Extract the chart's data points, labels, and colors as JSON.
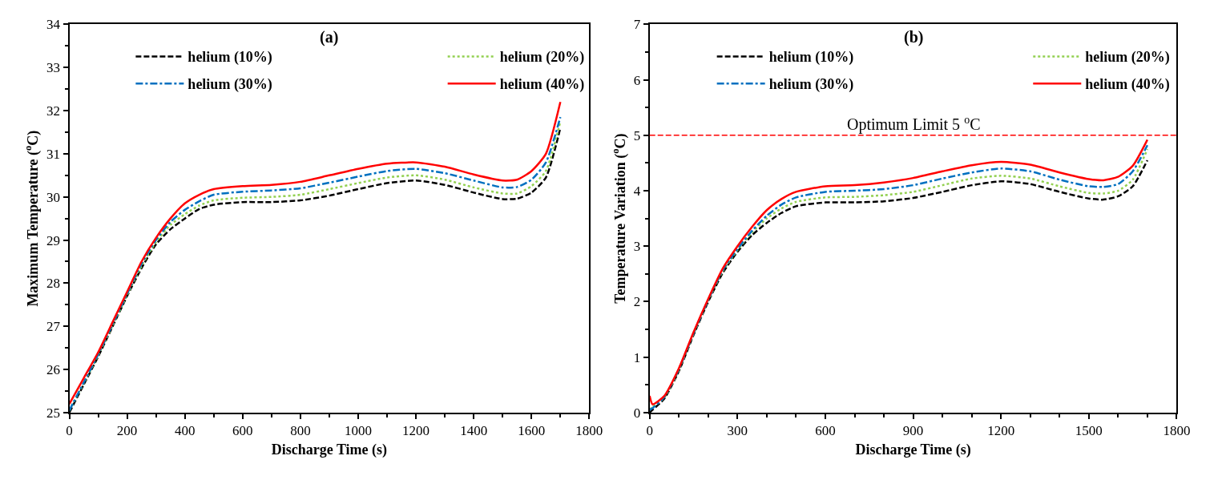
{
  "chart_data": [
    {
      "type": "line",
      "title": "(a)",
      "xlabel": "Discharge Time (s)",
      "ylabel": "Maximum Temperature ($^{o}$C)",
      "x": [
        0,
        50,
        100,
        150,
        200,
        250,
        300,
        350,
        400,
        450,
        500,
        600,
        700,
        800,
        900,
        1000,
        1100,
        1200,
        1300,
        1400,
        1500,
        1550,
        1600,
        1650,
        1700
      ],
      "xlim": [
        0,
        1800
      ],
      "xticks": [
        0,
        200,
        400,
        600,
        800,
        1000,
        1200,
        1400,
        1600,
        1800
      ],
      "ylim": [
        25,
        34
      ],
      "yticks": [
        25,
        26,
        27,
        28,
        29,
        30,
        31,
        32,
        33,
        34
      ],
      "legend": "top",
      "marker": "none",
      "series": [
        {
          "name": "helium (10%)",
          "color": "#000000",
          "line_style": "dashed",
          "values": [
            25.0,
            25.65,
            26.3,
            27.0,
            27.7,
            28.35,
            28.9,
            29.25,
            29.5,
            29.72,
            29.82,
            29.88,
            29.88,
            29.92,
            30.03,
            30.18,
            30.32,
            30.38,
            30.28,
            30.1,
            29.95,
            29.96,
            30.1,
            30.45,
            31.6
          ]
        },
        {
          "name": "helium (20%)",
          "color": "#92d050",
          "line_style": "dotted",
          "values": [
            25.05,
            25.68,
            26.33,
            27.02,
            27.72,
            28.4,
            28.95,
            29.35,
            29.6,
            29.8,
            29.92,
            29.98,
            30.0,
            30.05,
            30.18,
            30.32,
            30.45,
            30.5,
            30.4,
            30.22,
            30.08,
            30.08,
            30.25,
            30.6,
            31.75
          ]
        },
        {
          "name": "helium (30%)",
          "color": "#0070c0",
          "line_style": "dashdot",
          "values": [
            25.05,
            25.7,
            26.35,
            27.05,
            27.75,
            28.45,
            29.0,
            29.42,
            29.7,
            29.9,
            30.05,
            30.12,
            30.15,
            30.2,
            30.33,
            30.47,
            30.6,
            30.65,
            30.55,
            30.38,
            30.22,
            30.23,
            30.4,
            30.8,
            31.85
          ]
        },
        {
          "name": "helium (40%)",
          "color": "#ff0000",
          "line_style": "solid",
          "values": [
            25.2,
            25.8,
            26.4,
            27.1,
            27.8,
            28.5,
            29.05,
            29.5,
            29.85,
            30.05,
            30.18,
            30.25,
            30.28,
            30.35,
            30.5,
            30.65,
            30.77,
            30.8,
            30.7,
            30.52,
            30.38,
            30.4,
            30.6,
            31.0,
            32.2
          ]
        }
      ]
    },
    {
      "type": "line",
      "title": "(b)",
      "xlabel": "Discharge Time (s)",
      "ylabel": "Temperature Variation ($^{o}$C)",
      "x": [
        0,
        10,
        50,
        100,
        150,
        200,
        250,
        300,
        350,
        400,
        450,
        500,
        600,
        700,
        800,
        900,
        1000,
        1100,
        1200,
        1300,
        1400,
        1500,
        1550,
        1600,
        1650,
        1700
      ],
      "xlim": [
        0,
        1800
      ],
      "xticks": [
        0,
        300,
        600,
        900,
        1200,
        1500,
        1800
      ],
      "ylim": [
        0,
        7
      ],
      "yticks": [
        0,
        1,
        2,
        3,
        4,
        5,
        6,
        7
      ],
      "legend": "top",
      "marker": "none",
      "ref_lines": [
        {
          "axis": "y",
          "value": 5,
          "label": "Optimum Limit 5 $^{o}$C",
          "color": "#ff0000",
          "line_style": "dashed"
        }
      ],
      "series": [
        {
          "name": "helium (10%)",
          "color": "#000000",
          "line_style": "dashed",
          "values": [
            0.0,
            0.05,
            0.25,
            0.75,
            1.4,
            2.0,
            2.52,
            2.9,
            3.2,
            3.42,
            3.6,
            3.72,
            3.79,
            3.79,
            3.81,
            3.87,
            3.98,
            4.1,
            4.17,
            4.12,
            3.98,
            3.86,
            3.84,
            3.9,
            4.08,
            4.55
          ]
        },
        {
          "name": "helium (20%)",
          "color": "#92d050",
          "line_style": "dotted",
          "values": [
            0.05,
            0.1,
            0.27,
            0.77,
            1.42,
            2.02,
            2.55,
            2.93,
            3.25,
            3.5,
            3.68,
            3.8,
            3.88,
            3.89,
            3.92,
            3.98,
            4.1,
            4.22,
            4.27,
            4.22,
            4.08,
            3.96,
            3.95,
            4.0,
            4.2,
            4.75
          ]
        },
        {
          "name": "helium (30%)",
          "color": "#0070c0",
          "line_style": "dashdot",
          "values": [
            0.05,
            0.08,
            0.28,
            0.78,
            1.43,
            2.03,
            2.57,
            2.95,
            3.28,
            3.55,
            3.75,
            3.88,
            3.98,
            4.0,
            4.03,
            4.1,
            4.22,
            4.33,
            4.4,
            4.35,
            4.2,
            4.08,
            4.07,
            4.12,
            4.35,
            4.82
          ]
        },
        {
          "name": "helium (40%)",
          "color": "#ff0000",
          "line_style": "solid",
          "values": [
            0.3,
            0.15,
            0.3,
            0.8,
            1.45,
            2.05,
            2.6,
            3.0,
            3.35,
            3.65,
            3.85,
            3.98,
            4.08,
            4.1,
            4.15,
            4.23,
            4.35,
            4.46,
            4.52,
            4.47,
            4.33,
            4.21,
            4.19,
            4.25,
            4.45,
            4.92
          ]
        }
      ]
    }
  ]
}
